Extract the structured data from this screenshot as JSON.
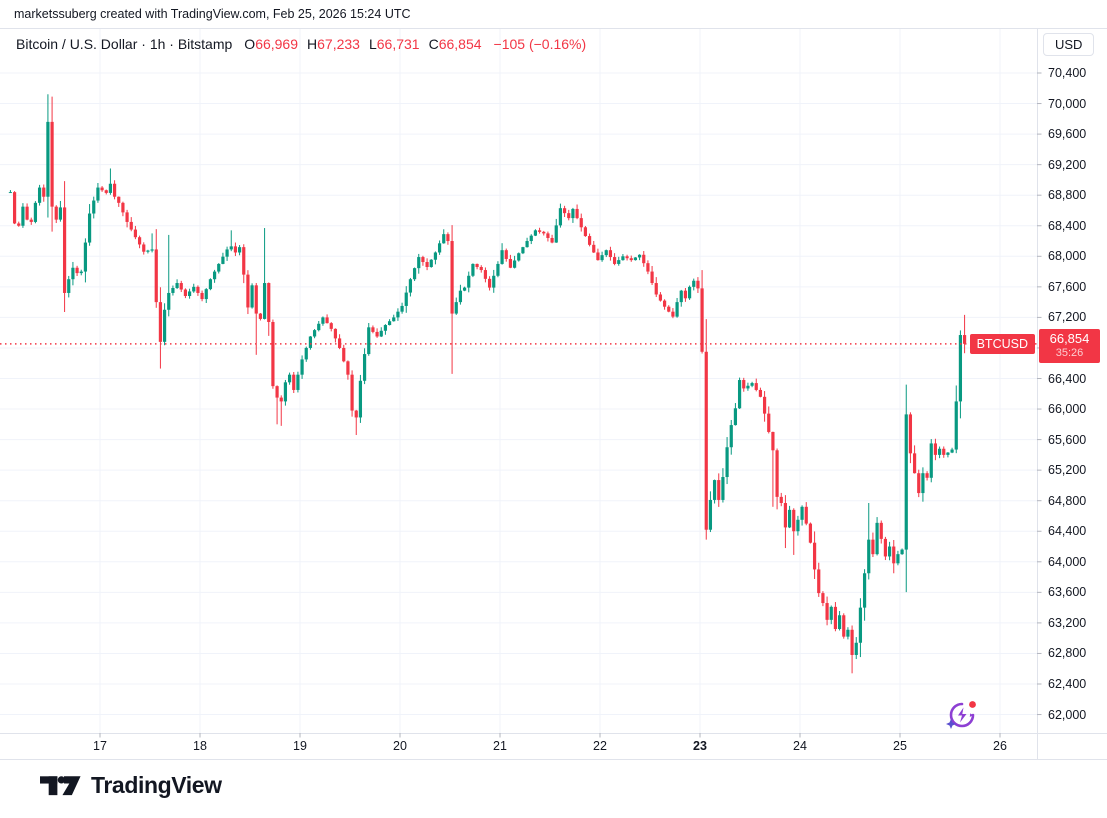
{
  "attribution": "marketssuberg created with TradingView.com, Feb 25, 2026 15:24 UTC",
  "header": {
    "symbol_title": "Bitcoin / U.S. Dollar · 1h · Bitstamp",
    "ohlc": [
      {
        "label": "O",
        "value": "66,969"
      },
      {
        "label": "H",
        "value": "67,233"
      },
      {
        "label": "L",
        "value": "66,731"
      },
      {
        "label": "C",
        "value": "66,854"
      }
    ],
    "change": "−105 (−0.16%)"
  },
  "price_axis": {
    "currency_label": "USD",
    "ticks": [
      {
        "value": 70400,
        "label": "70,400"
      },
      {
        "value": 70000,
        "label": "70,000"
      },
      {
        "value": 69600,
        "label": "69,600"
      },
      {
        "value": 69200,
        "label": "69,200"
      },
      {
        "value": 68800,
        "label": "68,800"
      },
      {
        "value": 68400,
        "label": "68,400"
      },
      {
        "value": 68000,
        "label": "68,000"
      },
      {
        "value": 67600,
        "label": "67,600"
      },
      {
        "value": 67200,
        "label": "67,200"
      },
      {
        "value": 66800,
        "label": "66,800",
        "hidden": true
      },
      {
        "value": 66400,
        "label": "66,400"
      },
      {
        "value": 66000,
        "label": "66,000"
      },
      {
        "value": 65600,
        "label": "65,600"
      },
      {
        "value": 65200,
        "label": "65,200"
      },
      {
        "value": 64800,
        "label": "64,800"
      },
      {
        "value": 64400,
        "label": "64,400"
      },
      {
        "value": 64000,
        "label": "64,000"
      },
      {
        "value": 63600,
        "label": "63,600"
      },
      {
        "value": 63200,
        "label": "63,200"
      },
      {
        "value": 62800,
        "label": "62,800"
      },
      {
        "value": 62400,
        "label": "62,400"
      },
      {
        "value": 62000,
        "label": "62,000"
      }
    ]
  },
  "time_axis": {
    "ticks": [
      {
        "label": "17",
        "day": 17,
        "bold": false
      },
      {
        "label": "18",
        "day": 18,
        "bold": false
      },
      {
        "label": "19",
        "day": 19,
        "bold": false
      },
      {
        "label": "20",
        "day": 20,
        "bold": false
      },
      {
        "label": "21",
        "day": 21,
        "bold": false
      },
      {
        "label": "22",
        "day": 22,
        "bold": false
      },
      {
        "label": "23",
        "day": 23,
        "bold": true
      },
      {
        "label": "24",
        "day": 24,
        "bold": false
      },
      {
        "label": "25",
        "day": 25,
        "bold": false
      },
      {
        "label": "26",
        "day": 26,
        "bold": false
      }
    ]
  },
  "last_price_label": {
    "symbol": "BTCUSD",
    "price": "66,854",
    "countdown": "35:26",
    "value": 66854
  },
  "logo": {
    "text": "TradingView"
  },
  "colors": {
    "up": "#089981",
    "down": "#F23645",
    "grid": "#F0F3FA",
    "axis_border": "#E0E3EB",
    "tick": "#B2B5BE",
    "text": "#131722"
  },
  "chart_data": {
    "type": "candlestick",
    "title": "Bitcoin / U.S. Dollar",
    "symbol": "BTCUSD",
    "interval": "1h",
    "exchange": "Bitstamp",
    "x_axis": {
      "unit": "day of Feb 2026",
      "visible_range_days": [
        16,
        26.4
      ],
      "grid": true
    },
    "y_axis": {
      "unit": "USD",
      "min": 61750,
      "max": 70950,
      "tick_step": 400,
      "grid": true
    },
    "current_candle": {
      "open": 66969,
      "high": 67233,
      "low": 66731,
      "close": 66854,
      "change": -105,
      "change_pct": -0.16
    },
    "last_price": 66854,
    "hours_start": "Feb 16 02:00 UTC",
    "close_anchors_by_hour": [
      [
        0,
        68840
      ],
      [
        1,
        68430
      ],
      [
        2,
        68400
      ],
      [
        3,
        68650
      ],
      [
        4,
        68480
      ],
      [
        5,
        68450
      ],
      [
        6,
        68700
      ],
      [
        7,
        68900
      ],
      [
        8,
        68780
      ],
      [
        9,
        69760
      ],
      [
        10,
        68650
      ],
      [
        11,
        68480
      ],
      [
        12,
        68640
      ],
      [
        13,
        67520
      ],
      [
        14,
        67700
      ],
      [
        15,
        67850
      ],
      [
        16,
        67780
      ],
      [
        17,
        67800
      ],
      [
        19,
        68560
      ],
      [
        21,
        68900
      ],
      [
        23,
        68830
      ],
      [
        24,
        68950
      ],
      [
        25,
        68780
      ],
      [
        26,
        68700
      ],
      [
        28,
        68450
      ],
      [
        30,
        68250
      ],
      [
        32,
        68060
      ],
      [
        34,
        68090
      ],
      [
        35,
        67400
      ],
      [
        36,
        66880
      ],
      [
        37,
        67300
      ],
      [
        38,
        67520
      ],
      [
        40,
        67650
      ],
      [
        42,
        67480
      ],
      [
        44,
        67600
      ],
      [
        46,
        67440
      ],
      [
        48,
        67700
      ],
      [
        50,
        67900
      ],
      [
        52,
        68090
      ],
      [
        53,
        68130
      ],
      [
        54,
        68050
      ],
      [
        55,
        68120
      ],
      [
        56,
        67760
      ],
      [
        57,
        67330
      ],
      [
        58,
        67620
      ],
      [
        59,
        67250
      ],
      [
        60,
        67180
      ],
      [
        61,
        67650
      ],
      [
        62,
        67140
      ],
      [
        63,
        66300
      ],
      [
        64,
        66150
      ],
      [
        65,
        66100
      ],
      [
        66,
        66350
      ],
      [
        67,
        66450
      ],
      [
        68,
        66250
      ],
      [
        70,
        66650
      ],
      [
        72,
        66950
      ],
      [
        75,
        67200
      ],
      [
        77,
        67050
      ],
      [
        79,
        66800
      ],
      [
        81,
        66450
      ],
      [
        82,
        65980
      ],
      [
        83,
        65890
      ],
      [
        84,
        66370
      ],
      [
        86,
        67070
      ],
      [
        88,
        66950
      ],
      [
        90,
        67100
      ],
      [
        92,
        67200
      ],
      [
        94,
        67350
      ],
      [
        96,
        67700
      ],
      [
        98,
        67990
      ],
      [
        100,
        67860
      ],
      [
        102,
        68050
      ],
      [
        104,
        68290
      ],
      [
        105,
        68200
      ],
      [
        106,
        67250
      ],
      [
        107,
        67400
      ],
      [
        108,
        67550
      ],
      [
        109,
        67590
      ],
      [
        111,
        67900
      ],
      [
        113,
        67820
      ],
      [
        115,
        67590
      ],
      [
        117,
        67900
      ],
      [
        118,
        68080
      ],
      [
        120,
        67850
      ],
      [
        122,
        68040
      ],
      [
        124,
        68200
      ],
      [
        126,
        68340
      ],
      [
        128,
        68300
      ],
      [
        130,
        68180
      ],
      [
        132,
        68630
      ],
      [
        134,
        68500
      ],
      [
        135,
        68620
      ],
      [
        137,
        68380
      ],
      [
        139,
        68150
      ],
      [
        141,
        67950
      ],
      [
        143,
        68080
      ],
      [
        145,
        67900
      ],
      [
        147,
        68000
      ],
      [
        149,
        67950
      ],
      [
        151,
        68020
      ],
      [
        153,
        67800
      ],
      [
        155,
        67500
      ],
      [
        157,
        67340
      ],
      [
        159,
        67210
      ],
      [
        160,
        67400
      ],
      [
        161,
        67550
      ],
      [
        162,
        67450
      ],
      [
        163,
        67600
      ],
      [
        164,
        67680
      ],
      [
        165,
        67580
      ],
      [
        166,
        66750
      ],
      [
        167,
        64420
      ],
      [
        168,
        64810
      ],
      [
        169,
        65070
      ],
      [
        170,
        64810
      ],
      [
        171,
        65110
      ],
      [
        172,
        65500
      ],
      [
        173,
        65790
      ],
      [
        174,
        66010
      ],
      [
        175,
        66380
      ],
      [
        176,
        66270
      ],
      [
        178,
        66340
      ],
      [
        180,
        66160
      ],
      [
        181,
        65940
      ],
      [
        182,
        65700
      ],
      [
        183,
        65460
      ],
      [
        184,
        64850
      ],
      [
        185,
        64770
      ],
      [
        186,
        64450
      ],
      [
        187,
        64680
      ],
      [
        188,
        64400
      ],
      [
        189,
        64550
      ],
      [
        190,
        64720
      ],
      [
        191,
        64500
      ],
      [
        192,
        64250
      ],
      [
        193,
        63900
      ],
      [
        194,
        63590
      ],
      [
        195,
        63460
      ],
      [
        196,
        63240
      ],
      [
        197,
        63410
      ],
      [
        198,
        63120
      ],
      [
        199,
        63300
      ],
      [
        200,
        63020
      ],
      [
        201,
        63110
      ],
      [
        202,
        62780
      ],
      [
        203,
        62940
      ],
      [
        204,
        63400
      ],
      [
        205,
        63850
      ],
      [
        206,
        64290
      ],
      [
        207,
        64100
      ],
      [
        208,
        64510
      ],
      [
        209,
        64300
      ],
      [
        210,
        64070
      ],
      [
        211,
        64200
      ],
      [
        212,
        63980
      ],
      [
        213,
        64100
      ],
      [
        214,
        64160
      ],
      [
        215,
        65930
      ],
      [
        216,
        65420
      ],
      [
        217,
        65160
      ],
      [
        218,
        64900
      ],
      [
        219,
        65160
      ],
      [
        220,
        65100
      ],
      [
        221,
        65550
      ],
      [
        222,
        65400
      ],
      [
        223,
        65480
      ],
      [
        224,
        65400
      ],
      [
        225,
        65430
      ],
      [
        226,
        65470
      ],
      [
        227,
        66100
      ],
      [
        228,
        66969
      ],
      [
        229,
        66854
      ]
    ],
    "wick_overrides": {
      "10": {
        "high": 70090
      },
      "13": {
        "low": 67270
      },
      "24": {
        "high": 69150
      },
      "34": {
        "high": 68300
      },
      "36": {
        "low": 66530
      },
      "38": {
        "high": 68280
      },
      "53": {
        "high": 68340
      },
      "59": {
        "low": 66710
      },
      "61": {
        "high": 68370
      },
      "64": {
        "low": 65800
      },
      "65": {
        "low": 65780
      },
      "83": {
        "low": 65660
      },
      "106": {
        "low": 66460
      },
      "132": {
        "high": 68690
      },
      "167": {
        "low": 64290
      },
      "183": {
        "low": 64720
      },
      "186": {
        "low": 64180
      },
      "188": {
        "low": 64090
      },
      "202": {
        "low": 62540
      },
      "206": {
        "high": 64770
      },
      "212": {
        "low": 63850
      },
      "215": {
        "high": 66320
      },
      "228": {
        "high": 67030
      },
      "229": {
        "high": 67233,
        "low": 66731
      }
    },
    "wick_noise": {
      "base": 25,
      "body_factor": 0.35
    }
  }
}
